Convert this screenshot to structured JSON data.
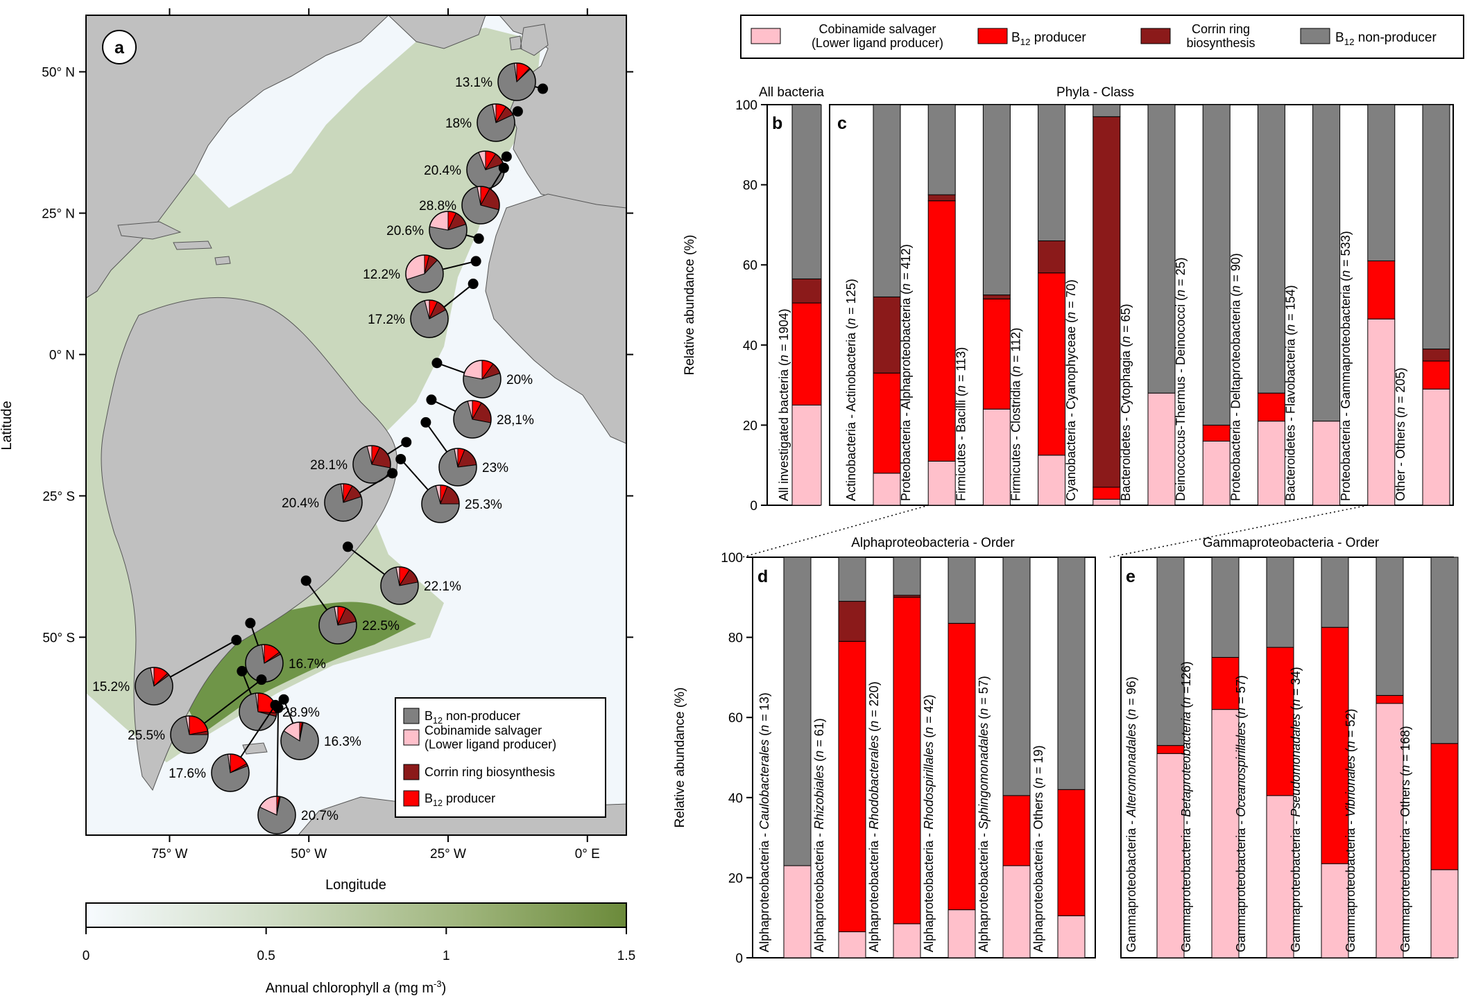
{
  "colors": {
    "cobinamide": "#ffc0cb",
    "producer": "#ff0000",
    "corrin": "#8b1a1a",
    "nonproducer": "#808080",
    "land": "#c0c0c0",
    "ocean_low": "#f2f7fb",
    "ocean_high": "#6b8a3a"
  },
  "legend_top": {
    "items": [
      {
        "label_lines": [
          "Cobinamide salvager",
          "(Lower ligand producer)"
        ],
        "sub": false
      },
      {
        "label_lines": [
          "B",
          "producer"
        ],
        "sub": true
      },
      {
        "label_lines": [
          "Corrin ring",
          "biosynthesis"
        ],
        "sub": false
      },
      {
        "label_lines": [
          "B",
          "non-producer"
        ],
        "sub": true
      }
    ],
    "subscript": "12"
  },
  "chart_data": [
    {
      "id": "a",
      "type": "pie",
      "panel_label": "a",
      "xlabel": "Longitude",
      "ylabel": "Latitude",
      "x_ticks": [
        "75° W",
        "50° W",
        "25° W",
        "0° E"
      ],
      "y_ticks": [
        "50° N",
        "25° N",
        "0° N",
        "25° S",
        "50° S"
      ],
      "colorbar": {
        "label_pre": "Annual chlorophyll ",
        "label_italic": "a",
        "label_post": " (mg m",
        "label_sup": "-3",
        "label_end": ")",
        "ticks": [
          "0",
          "0.5",
          "1",
          "1.5"
        ],
        "range": [
          0,
          1.5
        ]
      },
      "legend": [
        {
          "label_lines": [
            "B",
            "non-producer"
          ],
          "sub": true
        },
        {
          "label_lines": [
            "Cobinamide salvager",
            "(Lower ligand producer)"
          ],
          "sub": false
        },
        {
          "label_lines": [
            "Corrin ring biosynthesis"
          ],
          "sub": false
        },
        {
          "label_lines": [
            "B",
            "producer"
          ],
          "sub": true
        }
      ],
      "stations": [
        {
          "label": "13.1%",
          "lon": -8,
          "lat": 47,
          "cobinamide": 2,
          "producer": 12,
          "corrin": 1,
          "nonproducer": 85
        },
        {
          "label": "18%",
          "lon": -12.5,
          "lat": 43,
          "cobinamide": 3,
          "producer": 9,
          "corrin": 9,
          "nonproducer": 79
        },
        {
          "label": "20.4%",
          "lon": -14.5,
          "lat": 35,
          "cobinamide": 6,
          "producer": 9,
          "corrin": 11,
          "nonproducer": 74
        },
        {
          "label": "28.8%",
          "lon": -15,
          "lat": 33,
          "cobinamide": 3,
          "producer": 8,
          "corrin": 21,
          "nonproducer": 68
        },
        {
          "label": "20.6%",
          "lon": -19.5,
          "lat": 20.5,
          "cobinamide": 22,
          "producer": 7,
          "corrin": 13,
          "nonproducer": 58
        },
        {
          "label": "12.2%",
          "lon": -20,
          "lat": 16.5,
          "cobinamide": 30,
          "producer": 4,
          "corrin": 8,
          "nonproducer": 58
        },
        {
          "label": "17.2%",
          "lon": -20.5,
          "lat": 12.5,
          "cobinamide": 4,
          "producer": 7,
          "corrin": 10,
          "nonproducer": 79
        },
        {
          "label": "20%",
          "lon": -27,
          "lat": -1.5,
          "cobinamide": 22,
          "producer": 10,
          "corrin": 10,
          "nonproducer": 58
        },
        {
          "label": "28,1%",
          "lon": -28,
          "lat": -8,
          "cobinamide": 4,
          "producer": 8,
          "corrin": 20,
          "nonproducer": 68
        },
        {
          "label": "23%",
          "lon": -29,
          "lat": -12,
          "cobinamide": 3,
          "producer": 6,
          "corrin": 17,
          "nonproducer": 74
        },
        {
          "label": "28.1%",
          "lon": -32.5,
          "lat": -15.5,
          "cobinamide": 4,
          "producer": 7,
          "corrin": 21,
          "nonproducer": 68
        },
        {
          "label": "25.3%",
          "lon": -33.5,
          "lat": -18.5,
          "cobinamide": 4,
          "producer": 6,
          "corrin": 19,
          "nonproducer": 71
        },
        {
          "label": "20.4%",
          "lon": -35,
          "lat": -21,
          "cobinamide": 2,
          "producer": 8,
          "corrin": 12,
          "nonproducer": 78
        },
        {
          "label": "22.1%",
          "lon": -43,
          "lat": -34,
          "cobinamide": 3,
          "producer": 9,
          "corrin": 13,
          "nonproducer": 75
        },
        {
          "label": "22.5%",
          "lon": -50.5,
          "lat": -40,
          "cobinamide": 3,
          "producer": 7,
          "corrin": 15,
          "nonproducer": 75
        },
        {
          "label": "16.7%",
          "lon": -60.5,
          "lat": -47.5,
          "cobinamide": 2,
          "producer": 15,
          "corrin": 2,
          "nonproducer": 81
        },
        {
          "label": "15.2%",
          "lon": -63,
          "lat": -50.5,
          "cobinamide": 3,
          "producer": 13,
          "corrin": 2,
          "nonproducer": 82
        },
        {
          "label": "28.9%",
          "lon": -62,
          "lat": -56,
          "cobinamide": 2,
          "producer": 26,
          "corrin": 3,
          "nonproducer": 69
        },
        {
          "label": "25.5%",
          "lon": -58.5,
          "lat": -57.5,
          "cobinamide": 3,
          "producer": 22,
          "corrin": 3,
          "nonproducer": 72
        },
        {
          "label": "16.3%",
          "lon": -54.5,
          "lat": -61,
          "cobinamide": 16,
          "producer": 2,
          "corrin": 1,
          "nonproducer": 81
        },
        {
          "label": "17.6%",
          "lon": -56,
          "lat": -62,
          "cobinamide": 2,
          "producer": 17,
          "corrin": 2,
          "nonproducer": 79
        },
        {
          "label": "20.7%",
          "lon": -55.5,
          "lat": -62.5,
          "cobinamide": 18,
          "producer": 2,
          "corrin": 1,
          "nonproducer": 79
        }
      ]
    },
    {
      "id": "bc",
      "type": "bar",
      "stacked": true,
      "ylabel": "Relative abundance (%)",
      "ylim": [
        0,
        100
      ],
      "yticks": [
        0,
        20,
        40,
        60,
        80,
        100
      ],
      "groups": [
        {
          "panel": "b",
          "title": "All bacteria",
          "bars": [
            {
              "label_pre": "All investigated bacteria (",
              "n_label": "n",
              "label_post": " = 1904)",
              "cobinamide": 25,
              "producer": 25.5,
              "corrin": 6,
              "nonproducer": 43.5
            }
          ]
        },
        {
          "panel": "c",
          "title": "Phyla - Class",
          "bars": [
            {
              "label_pre": "Actinobacteria - Actinobacteria (",
              "n_label": "n",
              "label_post": " = 125)",
              "cobinamide": 8,
              "producer": 25,
              "corrin": 19,
              "nonproducer": 48
            },
            {
              "label_pre": "Proteobacteria - Alphaproteobacteria (",
              "n_label": "n",
              "label_post": " = 412)",
              "cobinamide": 11,
              "producer": 65,
              "corrin": 1.5,
              "nonproducer": 22.5
            },
            {
              "label_pre": "Firmicutes - Bacilli (",
              "n_label": "n",
              "label_post": " = 113)",
              "cobinamide": 24,
              "producer": 27.5,
              "corrin": 1,
              "nonproducer": 47.5
            },
            {
              "label_pre": "Firmicutes - Clostridia (",
              "n_label": "n",
              "label_post": " = 112)",
              "cobinamide": 12.5,
              "producer": 45.5,
              "corrin": 8,
              "nonproducer": 34
            },
            {
              "label_pre": "Cyanobacteria - Cyanophyceae (",
              "n_label": "n",
              "label_post": " = 70)",
              "cobinamide": 1.5,
              "producer": 3,
              "corrin": 92.5,
              "nonproducer": 3
            },
            {
              "label_pre": "Bacteroidetes - Cytophagia (",
              "n_label": "n",
              "label_post": " = 65)",
              "cobinamide": 28,
              "producer": 0,
              "corrin": 0,
              "nonproducer": 72
            },
            {
              "label_pre": "Deinococcus-Thermus - Deinococci (",
              "n_label": "n",
              "label_post": " = 25)",
              "cobinamide": 16,
              "producer": 4,
              "corrin": 0,
              "nonproducer": 80
            },
            {
              "label_pre": "Proteobacteria - Deltaproteobacteria (",
              "n_label": "n",
              "label_post": " = 90)",
              "cobinamide": 21,
              "producer": 7,
              "corrin": 0,
              "nonproducer": 72
            },
            {
              "label_pre": "Bacteroidetes - Flavobacteria (",
              "n_label": "n",
              "label_post": " = 154)",
              "cobinamide": 21,
              "producer": 0,
              "corrin": 0,
              "nonproducer": 79
            },
            {
              "label_pre": "Proteobacteria - Gammaproteobacteria (",
              "n_label": "n",
              "label_post": " = 533)",
              "cobinamide": 46.5,
              "producer": 14.5,
              "corrin": 0,
              "nonproducer": 39
            },
            {
              "label_pre": "Other - Others (",
              "n_label": "n",
              "label_post": " = 205)",
              "cobinamide": 29,
              "producer": 7,
              "corrin": 3,
              "nonproducer": 61
            }
          ]
        }
      ]
    },
    {
      "id": "d",
      "type": "bar",
      "stacked": true,
      "panel": "d",
      "title": "Alphaproteobacteria - Order",
      "ylabel": "Relative abundance (%)",
      "ylim": [
        0,
        100
      ],
      "yticks": [
        0,
        20,
        40,
        60,
        80,
        100
      ],
      "bars": [
        {
          "label_pre": "Alphaproteobacteria - ",
          "taxon": "Caulobacterales",
          "label_mid": " (",
          "n_label": "n",
          "label_post": " = 13)",
          "cobinamide": 23,
          "producer": 0,
          "corrin": 0,
          "nonproducer": 77
        },
        {
          "label_pre": "Alphaproteobacteria - ",
          "taxon": "Rhizobiales",
          "label_mid": " (",
          "n_label": "n",
          "label_post": " = 61)",
          "cobinamide": 6.5,
          "producer": 72.5,
          "corrin": 10,
          "nonproducer": 11
        },
        {
          "label_pre": "Alphaproteobacteria - ",
          "taxon": "Rhodobacterales",
          "label_mid": " (",
          "n_label": "n",
          "label_post": " = 220)",
          "cobinamide": 8.5,
          "producer": 81.5,
          "corrin": 0.5,
          "nonproducer": 9.5
        },
        {
          "label_pre": "Alphaproteobacteria - ",
          "taxon": "Rhodospirillales",
          "label_mid": " (",
          "n_label": "n",
          "label_post": " = 42)",
          "cobinamide": 12,
          "producer": 71.5,
          "corrin": 0,
          "nonproducer": 16.5
        },
        {
          "label_pre": "Alphaproteobacteria - ",
          "taxon": "Sphingomonadales",
          "label_mid": " (",
          "n_label": "n",
          "label_post": " = 57)",
          "cobinamide": 23,
          "producer": 17.5,
          "corrin": 0,
          "nonproducer": 59.5
        },
        {
          "label_pre": "Alphaproteobacteria - Others (",
          "taxon": "",
          "label_mid": "",
          "n_label": "n",
          "label_post": " = 19)",
          "cobinamide": 10.5,
          "producer": 31.5,
          "corrin": 0,
          "nonproducer": 58
        }
      ]
    },
    {
      "id": "e",
      "type": "bar",
      "stacked": true,
      "panel": "e",
      "title": "Gammaproteobacteria - Order",
      "ylim": [
        0,
        100
      ],
      "bars": [
        {
          "label_pre": "Gammaproteobacteria - ",
          "taxon": "Alteromonadales",
          "label_mid": " (",
          "n_label": "n",
          "label_post": " = 96)",
          "cobinamide": 51,
          "producer": 2,
          "corrin": 0,
          "nonproducer": 47
        },
        {
          "label_pre": "Gammaproteobacteria - ",
          "taxon": "Betaproteobacteria",
          "label_mid": " (",
          "n_label": "n",
          "label_post": " =126)",
          "cobinamide": 62,
          "producer": 13,
          "corrin": 0,
          "nonproducer": 25
        },
        {
          "label_pre": "Gammaproteobacteria - ",
          "taxon": "Oceanospirillales",
          "label_mid": " (",
          "n_label": "n",
          "label_post": " = 57)",
          "cobinamide": 40.5,
          "producer": 37,
          "corrin": 0,
          "nonproducer": 22.5
        },
        {
          "label_pre": "Gammaproteobacteria - ",
          "taxon": "Pseudomonadales",
          "label_mid": " (",
          "n_label": "n",
          "label_post": " = 34)",
          "cobinamide": 23.5,
          "producer": 59,
          "corrin": 0,
          "nonproducer": 17.5
        },
        {
          "label_pre": "Gammaproteobacteria - ",
          "taxon": "Vibrionales",
          "label_mid": " (",
          "n_label": "n",
          "label_post": " = 52)",
          "cobinamide": 63.5,
          "producer": 2,
          "corrin": 0,
          "nonproducer": 34.5
        },
        {
          "label_pre": "Gammaproteobacteria - Others (",
          "taxon": "",
          "label_mid": "",
          "n_label": "n",
          "label_post": " = 168)",
          "cobinamide": 22,
          "producer": 31.5,
          "corrin": 0,
          "nonproducer": 46.5
        }
      ]
    }
  ]
}
